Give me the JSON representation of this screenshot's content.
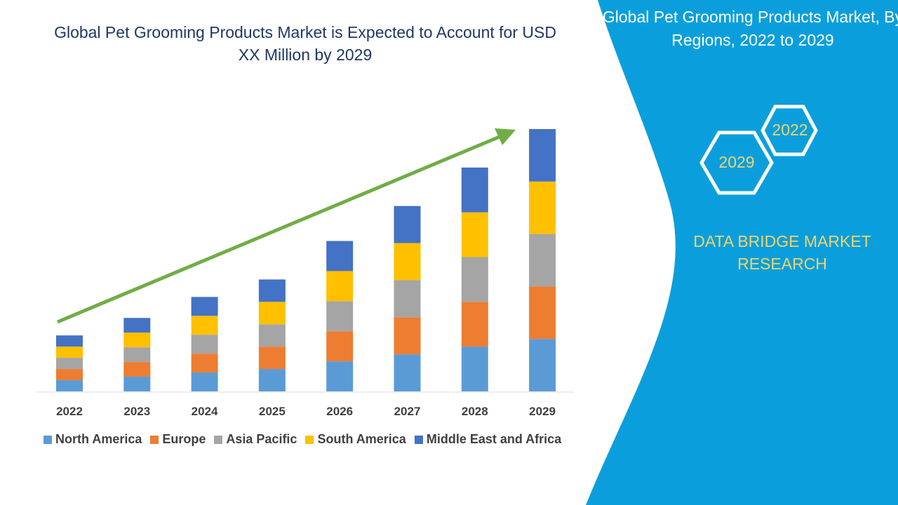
{
  "title": "Global Pet Grooming Products Market is Expected to Account for USD XX Million by 2029",
  "panel": {
    "title": "Global Pet Grooming Products Market, By Regions, 2022 to 2029",
    "hex_a": "2022",
    "hex_b": "2029",
    "brand": "DATA BRIDGE MARKET RESEARCH",
    "color": "#0a9fdc"
  },
  "chart_data": {
    "type": "bar",
    "stacked": true,
    "categories": [
      "2022",
      "2023",
      "2024",
      "2025",
      "2026",
      "2027",
      "2028",
      "2029"
    ],
    "series": [
      {
        "name": "North America",
        "color": "#5b9bd5",
        "values": [
          16,
          21,
          27,
          32,
          43,
          53,
          64,
          75
        ]
      },
      {
        "name": "Europe",
        "color": "#ed7d31",
        "values": [
          16,
          21,
          27,
          32,
          43,
          53,
          64,
          75
        ]
      },
      {
        "name": "Asia Pacific",
        "color": "#a5a5a5",
        "values": [
          16,
          21,
          27,
          32,
          43,
          53,
          64,
          75
        ]
      },
      {
        "name": "South America",
        "color": "#ffc000",
        "values": [
          16,
          21,
          27,
          32,
          43,
          53,
          64,
          75
        ]
      },
      {
        "name": "Middle East and Africa",
        "color": "#4472c4",
        "values": [
          16,
          21,
          27,
          32,
          43,
          53,
          64,
          75
        ]
      }
    ],
    "trend_arrow_color": "#70ad47",
    "legend": "bottom",
    "grid": false
  }
}
